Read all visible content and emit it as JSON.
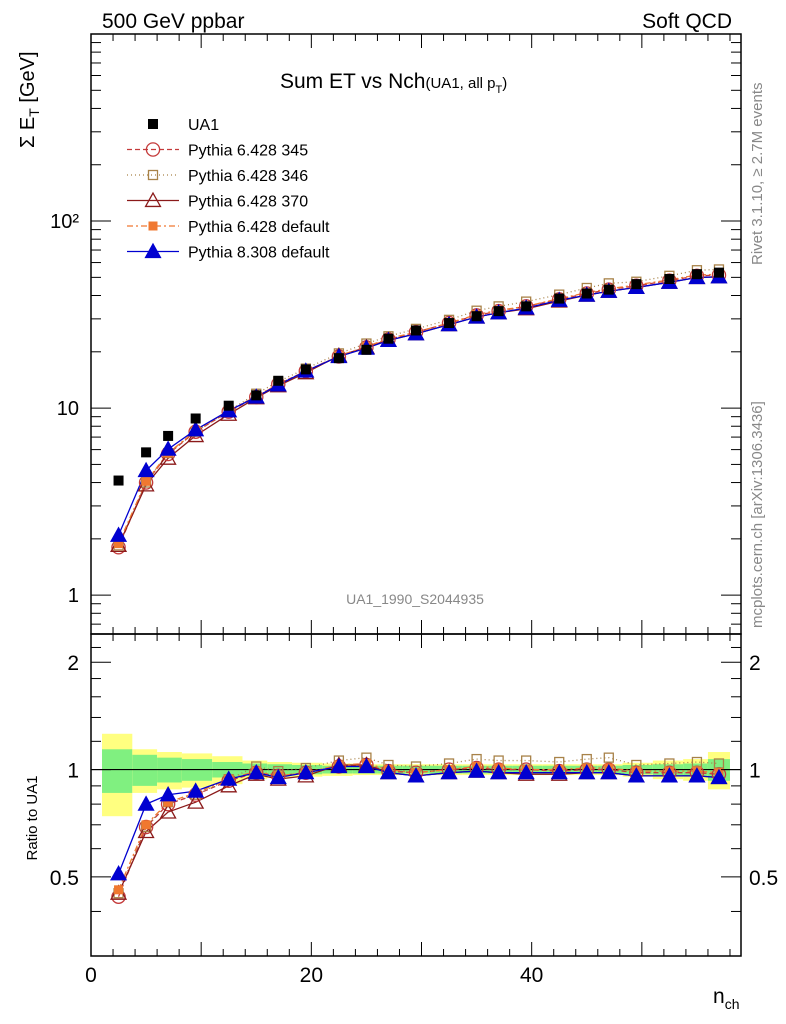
{
  "header": {
    "left": "500 GeV ppbar",
    "right": "Soft QCD"
  },
  "side_text": {
    "rivet": "Rivet 3.1.10, ≥ 2.7M events",
    "mcplots": "mcplots.cern.ch [arXiv:1306.3436]"
  },
  "chart_data": {
    "type": "scatter",
    "title": "Sum ET vs Nch",
    "title_suffix": "(UA1, all p",
    "title_suffix_sub": "T",
    "title_suffix_end": ")",
    "analysis_label": "UA1_1990_S2044935",
    "xlabel": "n",
    "xlabel_sub": "ch",
    "ylabel": "Σ E",
    "ylabel_sub": "T",
    "ylabel_unit": " [GeV]",
    "ratio_ylabel": "Ratio to UA1",
    "xlim": [
      0,
      59
    ],
    "ylim": [
      0.62,
      1000
    ],
    "yscale": "log",
    "ratio_ylim": [
      0.3,
      2.4
    ],
    "ratio_yscale": "log",
    "x_ticks": [
      "0",
      "20",
      "40"
    ],
    "y_ticks": [
      "1",
      "10",
      "10²"
    ],
    "ratio_y_ticks": [
      "0.5",
      "1",
      "2"
    ],
    "legend_position": "top-left",
    "x": [
      2.5,
      5,
      7,
      9.5,
      12.5,
      15,
      17,
      19.5,
      22.5,
      25,
      27,
      29.5,
      32.5,
      35,
      37,
      39.5,
      42.5,
      45,
      47,
      49.5,
      52.5,
      55,
      57
    ],
    "data": {
      "name": "UA1",
      "values": [
        4.1,
        5.8,
        7.1,
        8.8,
        10.3,
        11.7,
        14.0,
        16.1,
        18.5,
        20.5,
        23.5,
        26.0,
        28.5,
        31.0,
        33.0,
        35.0,
        38.5,
        41.0,
        43.0,
        46.0,
        49.0,
        52.0,
        53.0
      ],
      "band_inner": [
        0.14,
        0.1,
        0.08,
        0.07,
        0.05,
        0.04,
        0.035,
        0.03,
        0.025,
        0.025,
        0.025,
        0.025,
        0.025,
        0.025,
        0.025,
        0.025,
        0.025,
        0.025,
        0.025,
        0.03,
        0.035,
        0.04,
        0.07
      ],
      "band_outer": [
        0.26,
        0.14,
        0.12,
        0.11,
        0.09,
        0.06,
        0.05,
        0.045,
        0.04,
        0.035,
        0.035,
        0.035,
        0.035,
        0.035,
        0.035,
        0.035,
        0.035,
        0.035,
        0.035,
        0.045,
        0.06,
        0.07,
        0.12
      ]
    },
    "series": [
      {
        "name": "Pythia 6.428 345",
        "color": "#c43a3a",
        "marker": "circle-open",
        "dash": "5,3",
        "ratio": [
          0.44,
          0.69,
          0.8,
          0.85,
          0.93,
          0.98,
          0.96,
          0.98,
          1.02,
          1.03,
          0.99,
          0.98,
          1.0,
          1.01,
          1.0,
          1.0,
          0.99,
          1.0,
          1.0,
          0.98,
          0.98,
          0.98,
          0.97
        ]
      },
      {
        "name": "Pythia 6.428 346",
        "color": "#a88248",
        "marker": "square-open",
        "dash": "1,3",
        "ratio": [
          0.45,
          0.69,
          0.81,
          0.85,
          0.94,
          1.02,
          0.99,
          1.01,
          1.06,
          1.08,
          1.03,
          1.02,
          1.04,
          1.07,
          1.06,
          1.06,
          1.05,
          1.07,
          1.08,
          1.03,
          1.04,
          1.05,
          1.04
        ]
      },
      {
        "name": "Pythia 6.428 370",
        "color": "#8b1a1a",
        "marker": "triangle-open",
        "dash": "",
        "ratio": [
          0.45,
          0.67,
          0.76,
          0.81,
          0.9,
          0.97,
          0.94,
          0.96,
          1.03,
          1.03,
          0.98,
          0.96,
          0.98,
          0.99,
          0.98,
          0.97,
          0.97,
          0.98,
          0.98,
          0.96,
          0.96,
          0.96,
          0.95
        ]
      },
      {
        "name": "Pythia 6.428 default",
        "color": "#f07830",
        "marker": "square-filled",
        "dash": "6,3,2,3",
        "ratio": [
          0.46,
          0.7,
          0.81,
          0.86,
          0.94,
          0.99,
          0.96,
          0.98,
          1.03,
          1.04,
          1.0,
          0.98,
          1.0,
          1.02,
          1.01,
          1.0,
          1.0,
          1.01,
          1.01,
          0.99,
          0.99,
          0.99,
          0.98
        ]
      },
      {
        "name": "Pythia 8.308 default",
        "color": "#0000d0",
        "marker": "triangle-filled",
        "dash": "",
        "ratio": [
          0.51,
          0.8,
          0.85,
          0.87,
          0.94,
          0.98,
          0.95,
          0.98,
          1.02,
          1.02,
          0.98,
          0.96,
          0.98,
          0.99,
          0.98,
          0.98,
          0.98,
          0.98,
          0.98,
          0.96,
          0.96,
          0.96,
          0.95
        ]
      }
    ]
  }
}
